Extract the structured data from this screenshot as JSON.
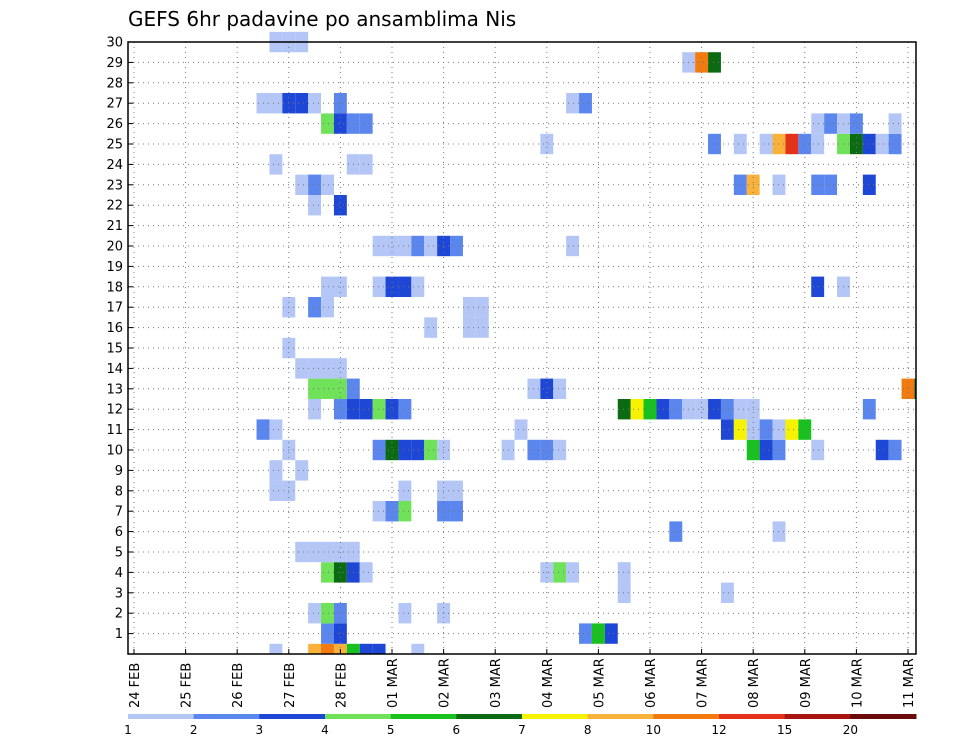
{
  "chart_data": {
    "type": "heatmap",
    "title": "GEFS 6hr padavine po ansamblima Nis",
    "xlabel": "",
    "ylabel": "",
    "x_ticks": [
      "24 FEB",
      "25 FEB",
      "26 FEB",
      "27 FEB",
      "28 FEB",
      "01 MAR",
      "02 MAR",
      "03 MAR",
      "04 MAR",
      "05 MAR",
      "06 MAR",
      "07 MAR",
      "08 MAR",
      "09 MAR",
      "10 MAR",
      "11 MAR"
    ],
    "y_ticks": [
      "1",
      "2",
      "3",
      "4",
      "5",
      "6",
      "7",
      "8",
      "9",
      "10",
      "11",
      "12",
      "13",
      "14",
      "15",
      "16",
      "17",
      "18",
      "19",
      "20",
      "21",
      "22",
      "23",
      "24",
      "25",
      "26",
      "27",
      "28",
      "29",
      "30"
    ],
    "xlim_days": [
      0,
      15.25
    ],
    "ylim": [
      0,
      30
    ],
    "grid": true,
    "colorbar": {
      "labels": [
        "1",
        "2",
        "3",
        "4",
        "5",
        "6",
        "7",
        "8",
        "10",
        "12",
        "15",
        "20"
      ],
      "colors": [
        "#b3c6f5",
        "#5a86ee",
        "#1f47d6",
        "#6fe25a",
        "#18c21e",
        "#0c6b12",
        "#f7f200",
        "#f8b13a",
        "#f27a0e",
        "#e4321a",
        "#a8140f",
        "#6b0a0a"
      ]
    },
    "palette": {
      "1": "#b3c6f5",
      "2": "#5a86ee",
      "3": "#1f47d6",
      "4": "#6fe25a",
      "5": "#18c21e",
      "6": "#0c6b12",
      "7": "#f7f200",
      "8": "#f8b13a",
      "10": "#f27a0e",
      "12": "#e4321a"
    },
    "cells": [
      [
        0,
        2.75,
        1
      ],
      [
        0,
        3.5,
        8
      ],
      [
        0,
        3.75,
        10
      ],
      [
        0,
        4,
        8
      ],
      [
        0,
        4.25,
        5
      ],
      [
        0,
        4.5,
        3
      ],
      [
        0,
        4.75,
        3
      ],
      [
        0,
        5.5,
        1
      ],
      [
        1,
        3.75,
        2
      ],
      [
        1,
        4,
        3
      ],
      [
        1,
        8.75,
        2
      ],
      [
        1,
        9,
        5
      ],
      [
        1,
        9.25,
        3
      ],
      [
        2,
        3.5,
        1
      ],
      [
        2,
        3.75,
        4
      ],
      [
        2,
        4,
        2
      ],
      [
        2,
        5.25,
        1
      ],
      [
        2,
        6,
        1
      ],
      [
        3,
        9.5,
        1
      ],
      [
        3,
        11.5,
        1
      ],
      [
        4,
        3.75,
        4
      ],
      [
        4,
        4,
        6
      ],
      [
        4,
        4.25,
        3
      ],
      [
        4,
        4.5,
        1
      ],
      [
        4,
        8,
        1
      ],
      [
        4,
        8.25,
        4
      ],
      [
        4,
        8.5,
        1
      ],
      [
        4,
        9.5,
        1
      ],
      [
        5,
        3.25,
        1
      ],
      [
        5,
        3.5,
        1
      ],
      [
        5,
        3.75,
        1
      ],
      [
        5,
        4,
        1
      ],
      [
        5,
        4.25,
        1
      ],
      [
        6,
        10.5,
        2
      ],
      [
        6,
        12.5,
        1
      ],
      [
        7,
        4.75,
        1
      ],
      [
        7,
        5,
        2
      ],
      [
        7,
        5.25,
        4
      ],
      [
        7,
        6,
        2
      ],
      [
        7,
        6.25,
        2
      ],
      [
        8,
        2.75,
        1
      ],
      [
        8,
        3,
        1
      ],
      [
        8,
        5.25,
        1
      ],
      [
        8,
        6,
        1
      ],
      [
        8,
        6.25,
        1
      ],
      [
        9,
        2.75,
        1
      ],
      [
        9,
        3.25,
        1
      ],
      [
        10,
        3,
        1
      ],
      [
        10,
        4.75,
        2
      ],
      [
        10,
        5,
        6
      ],
      [
        10,
        5.25,
        3
      ],
      [
        10,
        5.5,
        3
      ],
      [
        10,
        5.75,
        4
      ],
      [
        10,
        6,
        1
      ],
      [
        10,
        7.25,
        1
      ],
      [
        10,
        7.75,
        2
      ],
      [
        10,
        8,
        2
      ],
      [
        10,
        8.25,
        1
      ],
      [
        10,
        12,
        5
      ],
      [
        10,
        12.25,
        3
      ],
      [
        10,
        12.5,
        2
      ],
      [
        10,
        13.25,
        1
      ],
      [
        10,
        14.5,
        3
      ],
      [
        10,
        14.75,
        2
      ],
      [
        11,
        2.5,
        2
      ],
      [
        11,
        2.75,
        1
      ],
      [
        11,
        7.5,
        1
      ],
      [
        11,
        11.5,
        3
      ],
      [
        11,
        11.75,
        7
      ],
      [
        11,
        12,
        1
      ],
      [
        11,
        12.25,
        2
      ],
      [
        11,
        12.5,
        1
      ],
      [
        11,
        12.75,
        7
      ],
      [
        11,
        13,
        5
      ],
      [
        12,
        3.5,
        1
      ],
      [
        12,
        4,
        2
      ],
      [
        12,
        4.25,
        3
      ],
      [
        12,
        4.5,
        3
      ],
      [
        12,
        4.75,
        4
      ],
      [
        12,
        5,
        3
      ],
      [
        12,
        5.25,
        2
      ],
      [
        12,
        9.5,
        6
      ],
      [
        12,
        9.75,
        7
      ],
      [
        12,
        10,
        5
      ],
      [
        12,
        10.25,
        3
      ],
      [
        12,
        10.5,
        2
      ],
      [
        12,
        10.75,
        1
      ],
      [
        12,
        11,
        1
      ],
      [
        12,
        11.25,
        3
      ],
      [
        12,
        11.5,
        2
      ],
      [
        12,
        11.75,
        1
      ],
      [
        12,
        12,
        1
      ],
      [
        12,
        14.25,
        2
      ],
      [
        13,
        3.5,
        4
      ],
      [
        13,
        3.75,
        4
      ],
      [
        13,
        4,
        4
      ],
      [
        13,
        4.25,
        2
      ],
      [
        13,
        7.75,
        1
      ],
      [
        13,
        8,
        3
      ],
      [
        13,
        8.25,
        1
      ],
      [
        13,
        15,
        10
      ],
      [
        13,
        15.25,
        6
      ],
      [
        14,
        3.25,
        1
      ],
      [
        14,
        3.5,
        1
      ],
      [
        14,
        3.75,
        1
      ],
      [
        14,
        4,
        1
      ],
      [
        15,
        3,
        1
      ],
      [
        16,
        5.75,
        1
      ],
      [
        16,
        6.5,
        1
      ],
      [
        16,
        6.75,
        1
      ],
      [
        17,
        3,
        1
      ],
      [
        17,
        3.5,
        2
      ],
      [
        17,
        3.75,
        1
      ],
      [
        17,
        6.5,
        1
      ],
      [
        17,
        6.75,
        1
      ],
      [
        18,
        3.75,
        1
      ],
      [
        18,
        4,
        1
      ],
      [
        18,
        4.75,
        1
      ],
      [
        18,
        5,
        3
      ],
      [
        18,
        5.25,
        3
      ],
      [
        18,
        5.5,
        1
      ],
      [
        18,
        13.25,
        3
      ],
      [
        18,
        13.75,
        1
      ],
      [
        20,
        4.75,
        1
      ],
      [
        20,
        5,
        1
      ],
      [
        20,
        5.25,
        1
      ],
      [
        20,
        5.5,
        2
      ],
      [
        20,
        5.75,
        1
      ],
      [
        20,
        6,
        3
      ],
      [
        20,
        6.25,
        2
      ],
      [
        20,
        8.5,
        1
      ],
      [
        22,
        3.5,
        1
      ],
      [
        22,
        4,
        3
      ],
      [
        23,
        3.25,
        1
      ],
      [
        23,
        3.5,
        2
      ],
      [
        23,
        3.75,
        1
      ],
      [
        23,
        11.75,
        2
      ],
      [
        23,
        12,
        8
      ],
      [
        23,
        12.5,
        1
      ],
      [
        23,
        13.25,
        2
      ],
      [
        23,
        13.5,
        2
      ],
      [
        23,
        14.25,
        3
      ],
      [
        24,
        2.75,
        1
      ],
      [
        24,
        4.25,
        1
      ],
      [
        24,
        4.5,
        1
      ],
      [
        25,
        8,
        1
      ],
      [
        25,
        11.25,
        2
      ],
      [
        25,
        11.75,
        1
      ],
      [
        25,
        12.25,
        1
      ],
      [
        25,
        12.5,
        8
      ],
      [
        25,
        12.75,
        12
      ],
      [
        25,
        13,
        2
      ],
      [
        25,
        13.25,
        1
      ],
      [
        25,
        13.75,
        4
      ],
      [
        25,
        14,
        6
      ],
      [
        25,
        14.25,
        3
      ],
      [
        25,
        14.5,
        1
      ],
      [
        25,
        14.75,
        2
      ],
      [
        26,
        3.75,
        4
      ],
      [
        26,
        4,
        3
      ],
      [
        26,
        4.25,
        2
      ],
      [
        26,
        4.5,
        2
      ],
      [
        26,
        13.25,
        1
      ],
      [
        26,
        13.5,
        2
      ],
      [
        26,
        13.75,
        1
      ],
      [
        26,
        14,
        2
      ],
      [
        26,
        14.75,
        1
      ],
      [
        27,
        2.5,
        1
      ],
      [
        27,
        2.75,
        1
      ],
      [
        27,
        3,
        3
      ],
      [
        27,
        3.25,
        3
      ],
      [
        27,
        3.5,
        1
      ],
      [
        27,
        4,
        2
      ],
      [
        27,
        8.5,
        1
      ],
      [
        27,
        8.75,
        2
      ],
      [
        29,
        10.75,
        1
      ],
      [
        29,
        11,
        10
      ],
      [
        29,
        11.25,
        6
      ],
      [
        30,
        2.75,
        1
      ],
      [
        30,
        3,
        1
      ],
      [
        30,
        3.25,
        1
      ]
    ]
  }
}
